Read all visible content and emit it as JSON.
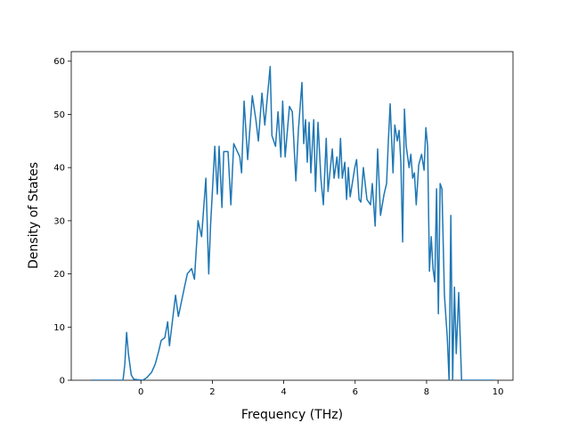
{
  "chart_data": {
    "type": "line",
    "xlabel": "Frequency (THz)",
    "ylabel": "Density of States",
    "x": [
      -1.4,
      -0.5,
      -0.45,
      -0.4,
      -0.35,
      -0.27,
      -0.2,
      0.05,
      0.17,
      0.3,
      0.4,
      0.5,
      0.57,
      0.67,
      0.75,
      0.8,
      0.97,
      1.05,
      1.22,
      1.3,
      1.42,
      1.5,
      1.6,
      1.7,
      1.82,
      1.9,
      1.95,
      2.07,
      2.14,
      2.19,
      2.27,
      2.32,
      2.44,
      2.52,
      2.6,
      2.77,
      2.82,
      2.89,
      2.99,
      3.12,
      3.22,
      3.29,
      3.39,
      3.47,
      3.62,
      3.67,
      3.77,
      3.84,
      3.92,
      3.97,
      4.04,
      4.16,
      4.24,
      4.34,
      4.41,
      4.51,
      4.56,
      4.61,
      4.66,
      4.71,
      4.76,
      4.84,
      4.89,
      4.96,
      5.04,
      5.11,
      5.19,
      5.24,
      5.36,
      5.41,
      5.49,
      5.54,
      5.59,
      5.64,
      5.71,
      5.76,
      5.81,
      5.86,
      5.99,
      6.04,
      6.11,
      6.16,
      6.23,
      6.33,
      6.43,
      6.48,
      6.56,
      6.63,
      6.71,
      6.81,
      6.88,
      6.93,
      6.98,
      7.06,
      7.11,
      7.18,
      7.23,
      7.28,
      7.33,
      7.38,
      7.43,
      7.51,
      7.56,
      7.61,
      7.66,
      7.71,
      7.78,
      7.86,
      7.93,
      7.98,
      8.03,
      8.08,
      8.13,
      8.18,
      8.23,
      8.28,
      8.33,
      8.38,
      8.43,
      8.5,
      8.58,
      8.63,
      8.68,
      8.73,
      8.78,
      8.83,
      8.9,
      8.98,
      9.9
    ],
    "series": [
      {
        "color": "#1f77b4",
        "values": [
          0,
          0,
          3,
          9,
          5,
          1,
          0.2,
          0,
          0.5,
          1.5,
          3,
          5.5,
          7.5,
          8,
          11,
          6.5,
          16,
          12,
          17.5,
          20,
          21,
          19,
          30,
          27,
          38,
          20,
          29,
          44,
          35,
          44,
          32.5,
          43,
          43,
          33,
          44.5,
          42,
          39,
          52.5,
          41.5,
          53.5,
          49,
          45,
          54,
          48,
          59,
          46,
          44,
          50.5,
          42,
          52.5,
          42,
          51.5,
          50.5,
          37.5,
          47,
          56,
          44.5,
          49,
          41,
          48.5,
          39,
          49,
          35.5,
          48.5,
          38,
          33,
          45.5,
          35.5,
          43.5,
          38,
          42,
          38,
          45.5,
          38,
          41,
          34,
          40,
          34.5,
          40,
          41.5,
          34,
          33.5,
          40,
          34,
          33,
          37,
          29,
          43.5,
          31,
          35,
          37,
          45,
          52,
          39,
          48,
          45,
          47,
          41,
          26,
          51,
          44,
          40,
          42.5,
          38,
          39,
          33,
          40.5,
          42.5,
          39.5,
          47.5,
          44,
          20.5,
          27,
          21,
          18.5,
          36,
          12.5,
          37,
          36,
          16,
          8,
          0,
          31,
          0,
          17.5,
          5,
          16.5,
          0,
          0
        ]
      }
    ],
    "xlim": [
      -1.95,
      10.42
    ],
    "ylim": [
      0,
      61.8
    ],
    "xticks": [
      0,
      2,
      4,
      6,
      8,
      10
    ],
    "yticks": [
      0,
      10,
      20,
      30,
      40,
      50,
      60
    ]
  }
}
